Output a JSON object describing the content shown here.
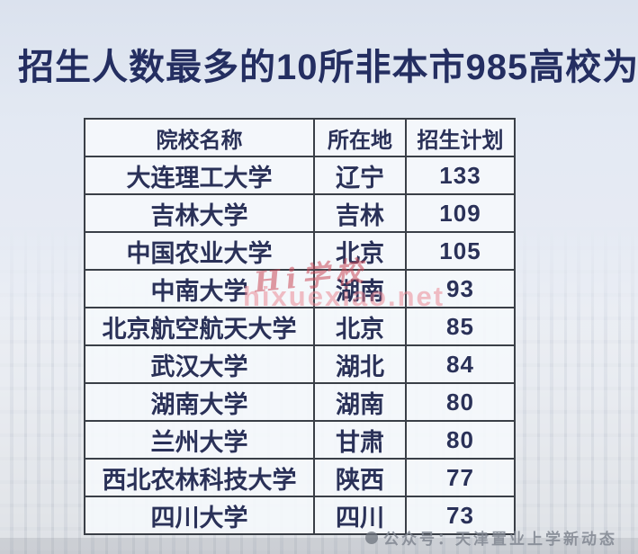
{
  "title": "招生人数最多的10所非本市985高校为：",
  "table": {
    "headers": [
      "院校名称",
      "所在地",
      "招生计划"
    ],
    "rows": [
      {
        "name": "大连理工大学",
        "location": "辽宁",
        "plan": "133"
      },
      {
        "name": "吉林大学",
        "location": "吉林",
        "plan": "109"
      },
      {
        "name": "中国农业大学",
        "location": "北京",
        "plan": "105"
      },
      {
        "name": "中南大学",
        "location": "湖南",
        "plan": "93"
      },
      {
        "name": "北京航空航天大学",
        "location": "北京",
        "plan": "85"
      },
      {
        "name": "武汉大学",
        "location": "湖北",
        "plan": "84"
      },
      {
        "name": "湖南大学",
        "location": "湖南",
        "plan": "80"
      },
      {
        "name": "兰州大学",
        "location": "甘肃",
        "plan": "80"
      },
      {
        "name": "西北农林科技大学",
        "location": "陕西",
        "plan": "77"
      },
      {
        "name": "四川大学",
        "location": "四川",
        "plan": "73"
      }
    ]
  },
  "watermarks": {
    "center_script": "Hi学校",
    "center_url": "hixuexiao.net",
    "footer": "公众号：天津置业上学新动态"
  },
  "colors": {
    "title_navy": "#242e61",
    "table_text_navy": "#2a3158",
    "table_border": "#3a3f47",
    "cell_background": "#f5f8fc",
    "watermark_red": "#cb4858",
    "watermark_pink": "#e9808b",
    "footer_gray": "#808690"
  }
}
